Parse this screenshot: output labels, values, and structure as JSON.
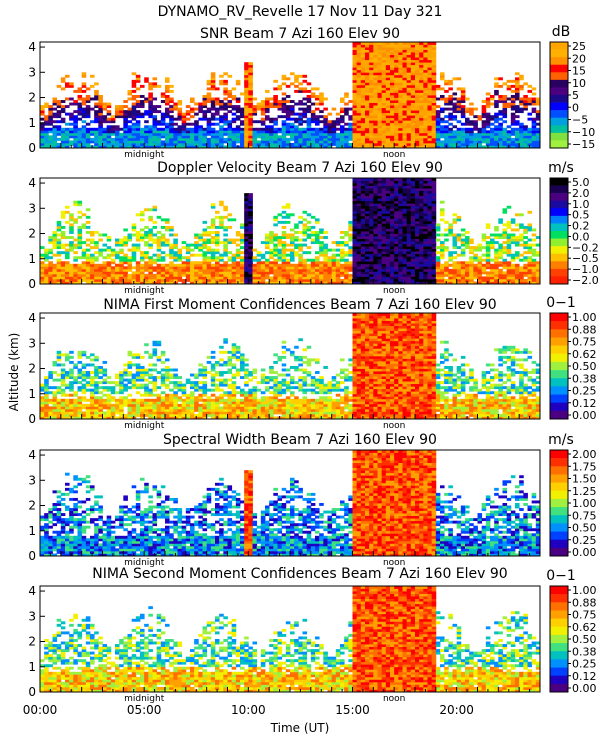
{
  "figure": {
    "title": "DYNAMO_RV_Revelle  17 Nov 11 Day 321",
    "y_axis_label": "Altitude (km)",
    "x_axis_label": "Time (UT)",
    "x_ticks": [
      "00:00",
      "05:00",
      "10:00",
      "15:00",
      "20:00"
    ],
    "y_ticks": [
      "0",
      "1",
      "2",
      "3",
      "4"
    ],
    "midnight_label": "midnight",
    "noon_label": "noon"
  },
  "chart_data": [
    {
      "type": "heatmap",
      "title": "SNR Beam 7 Azi 160 Elev 90",
      "xlabel": "Time (UT)",
      "ylabel": "Altitude (km)",
      "xlim": [
        0,
        24
      ],
      "ylim": [
        0,
        4.2
      ],
      "colorbar": {
        "unit": "dB",
        "ticks": [
          "25",
          "20",
          "15",
          "10",
          "5",
          "0",
          "−5",
          "−10",
          "−15"
        ],
        "colors": [
          "#ffa500",
          "#ffb000",
          "#ff9000",
          "#ff0000",
          "#ff6000",
          "#2a0060",
          "#4b0082",
          "#1a0a8a",
          "#0000ff",
          "#0050ff",
          "#00a0e0",
          "#00c0a0",
          "#80e040",
          "#a0f040"
        ]
      },
      "features": {
        "shallow_layer_top_km": 0.6,
        "sparse_echo_top_km": 3.0,
        "convective_events": [
          {
            "start_h": 9.8,
            "end_h": 10.2,
            "top_km": 3.4
          },
          {
            "start_h": 15.0,
            "end_h": 18.9,
            "top_km": 4.2
          }
        ]
      }
    },
    {
      "type": "heatmap",
      "title": "Doppler Velocity Beam 7 Azi 160 Elev 90",
      "xlabel": "Time (UT)",
      "ylabel": "Altitude (km)",
      "xlim": [
        0,
        24
      ],
      "ylim": [
        0,
        4.2
      ],
      "colorbar": {
        "unit": "m/s",
        "ticks": [
          "5.0",
          "2.0",
          "1.0",
          "0.5",
          "0.2",
          "0.0",
          "−0.2",
          "−0.5",
          "−1.0",
          "−2.0"
        ],
        "colors": [
          "#000000",
          "#1a0050",
          "#4b0082",
          "#1a0aa0",
          "#0000ff",
          "#0080ff",
          "#00c0c0",
          "#00e060",
          "#90f030",
          "#f0f000",
          "#ffc000",
          "#ff8000",
          "#ff4000",
          "#ff2000"
        ]
      },
      "features": {
        "convective_events": [
          {
            "start_h": 9.8,
            "end_h": 10.2,
            "top_km": 3.6
          },
          {
            "start_h": 15.0,
            "end_h": 18.9,
            "top_km": 4.2
          }
        ]
      }
    },
    {
      "type": "heatmap",
      "title": "NIMA First Moment Confidences Beam 7 Azi 160 Elev 90",
      "xlabel": "Time (UT)",
      "ylabel": "Altitude (km)",
      "xlim": [
        0,
        24
      ],
      "ylim": [
        0,
        4.2
      ],
      "colorbar": {
        "unit": "0−1",
        "ticks": [
          "1.00",
          "0.88",
          "0.75",
          "0.62",
          "0.50",
          "0.38",
          "0.25",
          "0.12",
          "0.00"
        ],
        "colors": [
          "#ff0000",
          "#ff3000",
          "#ff7000",
          "#ffa000",
          "#ffd000",
          "#f0f000",
          "#a0f040",
          "#40e080",
          "#00c0c0",
          "#0090ff",
          "#0040ff",
          "#2000c0",
          "#4b0082"
        ]
      },
      "features": {
        "convective_events": [
          {
            "start_h": 15.0,
            "end_h": 18.9,
            "top_km": 4.2
          }
        ]
      }
    },
    {
      "type": "heatmap",
      "title": "Spectral Width Beam 7 Azi 160 Elev 90",
      "xlabel": "Time (UT)",
      "ylabel": "Altitude (km)",
      "xlim": [
        0,
        24
      ],
      "ylim": [
        0,
        4.2
      ],
      "colorbar": {
        "unit": "m/s",
        "ticks": [
          "2.00",
          "1.75",
          "1.50",
          "1.25",
          "1.00",
          "0.75",
          "0.50",
          "0.25",
          "0.00"
        ],
        "colors": [
          "#ff0000",
          "#ff3000",
          "#ff7000",
          "#ffa000",
          "#ffd000",
          "#f0f000",
          "#a0f040",
          "#40e080",
          "#00c0c0",
          "#0090ff",
          "#0040ff",
          "#2000c0",
          "#4b0082"
        ]
      },
      "features": {
        "convective_events": [
          {
            "start_h": 9.8,
            "end_h": 10.2,
            "top_km": 3.4
          },
          {
            "start_h": 15.0,
            "end_h": 18.9,
            "top_km": 4.2
          }
        ]
      }
    },
    {
      "type": "heatmap",
      "title": "NIMA Second Moment Confidences Beam 7 Azi 160 Elev 90",
      "xlabel": "Time (UT)",
      "ylabel": "Altitude (km)",
      "xlim": [
        0,
        24
      ],
      "ylim": [
        0,
        4.2
      ],
      "colorbar": {
        "unit": "0−1",
        "ticks": [
          "1.00",
          "0.88",
          "0.75",
          "0.62",
          "0.50",
          "0.38",
          "0.25",
          "0.12",
          "0.00"
        ],
        "colors": [
          "#ff0000",
          "#ff3000",
          "#ff7000",
          "#ffa000",
          "#ffd000",
          "#f0f000",
          "#a0f040",
          "#40e080",
          "#00c0c0",
          "#0090ff",
          "#0040ff",
          "#2000c0",
          "#4b0082"
        ]
      },
      "features": {
        "convective_events": [
          {
            "start_h": 15.0,
            "end_h": 18.9,
            "top_km": 4.2
          }
        ]
      }
    }
  ]
}
